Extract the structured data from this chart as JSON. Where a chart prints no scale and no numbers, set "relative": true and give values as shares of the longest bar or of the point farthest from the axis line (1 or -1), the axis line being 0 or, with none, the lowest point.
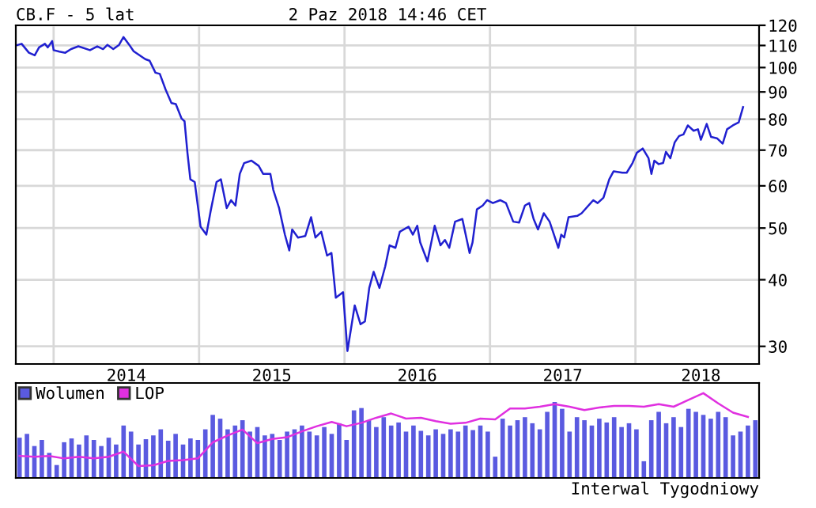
{
  "chart_data": [
    {
      "type": "line",
      "title": "CB.F - 5 lat",
      "subtitle": "2 Paz 2018 14:46 CET",
      "log": "y",
      "grid": true,
      "xlim": [
        2013.74,
        2018.85
      ],
      "xticks": [
        {
          "value": 2014,
          "label": null
        },
        {
          "value": 2014.5,
          "label": "2014"
        },
        {
          "value": 2015,
          "label": null
        },
        {
          "value": 2015.5,
          "label": "2015"
        },
        {
          "value": 2016,
          "label": null
        },
        {
          "value": 2016.5,
          "label": "2016"
        },
        {
          "value": 2017,
          "label": null
        },
        {
          "value": 2017.5,
          "label": "2017"
        },
        {
          "value": 2018,
          "label": null
        },
        {
          "value": 2018.45,
          "label": "2018"
        }
      ],
      "ylim": [
        27.8,
        120
      ],
      "yticks": [
        30,
        40,
        50,
        60,
        70,
        80,
        90,
        100,
        110,
        120
      ],
      "series": [
        {
          "color": "#2020d0",
          "x": [
            2013.74,
            2013.78,
            2013.83,
            2013.87,
            2013.9,
            2013.94,
            2013.96,
            2013.99,
            2014.0,
            2014.04,
            2014.08,
            2014.12,
            2014.17,
            2014.25,
            2014.3,
            2014.34,
            2014.37,
            2014.41,
            2014.45,
            2014.48,
            2014.52,
            2014.55,
            2014.58,
            2014.63,
            2014.66,
            2014.7,
            2014.73,
            2014.77,
            2014.81,
            2014.84,
            2014.88,
            2014.9,
            2014.92,
            2014.94,
            2014.97,
            2015.01,
            2015.05,
            2015.08,
            2015.12,
            2015.15,
            2015.19,
            2015.22,
            2015.25,
            2015.28,
            2015.31,
            2015.36,
            2015.41,
            2015.44,
            2015.49,
            2015.51,
            2015.55,
            2015.59,
            2015.62,
            2015.64,
            2015.68,
            2015.73,
            2015.77,
            2015.8,
            2015.84,
            2015.88,
            2015.91,
            2015.94,
            2015.99,
            2016.02,
            2016.07,
            2016.11,
            2016.14,
            2016.17,
            2016.2,
            2016.24,
            2016.28,
            2016.31,
            2016.35,
            2016.38,
            2016.44,
            2016.47,
            2016.5,
            2016.52,
            2016.57,
            2016.62,
            2016.66,
            2016.69,
            2016.72,
            2016.76,
            2016.81,
            2016.86,
            2016.88,
            2016.91,
            2016.95,
            2016.98,
            2017.02,
            2017.07,
            2017.11,
            2017.16,
            2017.2,
            2017.24,
            2017.27,
            2017.3,
            2017.33,
            2017.37,
            2017.41,
            2017.44,
            2017.47,
            2017.49,
            2017.51,
            2017.54,
            2017.6,
            2017.63,
            2017.71,
            2017.74,
            2017.78,
            2017.82,
            2017.85,
            2017.91,
            2017.94,
            2017.98,
            2018.01,
            2018.05,
            2018.09,
            2018.11,
            2018.13,
            2018.16,
            2018.19,
            2018.21,
            2018.24,
            2018.27,
            2018.3,
            2018.33,
            2018.36,
            2018.4,
            2018.43,
            2018.45,
            2018.49,
            2018.52,
            2018.56,
            2018.6,
            2018.63,
            2018.67,
            2018.71,
            2018.74
          ],
          "values": [
            110,
            110.8,
            106.6,
            105.4,
            109.1,
            110.8,
            109.1,
            112.1,
            107.8,
            107.1,
            106.6,
            108.3,
            109.6,
            107.8,
            109.6,
            108.3,
            110.3,
            108.3,
            110.3,
            114.1,
            110.3,
            107.3,
            105.9,
            103.7,
            103.0,
            97.8,
            97.3,
            90.9,
            85.8,
            85.4,
            80.2,
            79.3,
            69.2,
            61.7,
            61.0,
            50.3,
            48.6,
            53.9,
            61.0,
            61.7,
            54.5,
            56.4,
            55.1,
            63.2,
            66.2,
            66.9,
            65.4,
            63.2,
            63.2,
            59.0,
            54.5,
            48.6,
            45.4,
            49.7,
            48.0,
            48.3,
            52.4,
            48.0,
            49.2,
            44.4,
            44.9,
            37.0,
            37.9,
            29.4,
            35.8,
            33.0,
            33.4,
            38.6,
            41.4,
            38.6,
            42.4,
            46.4,
            45.9,
            49.2,
            50.3,
            48.6,
            50.5,
            47.0,
            43.3,
            50.5,
            46.4,
            47.5,
            45.9,
            51.4,
            52.0,
            44.9,
            47.0,
            54.2,
            55.1,
            56.4,
            55.7,
            56.4,
            55.7,
            51.4,
            51.2,
            55.1,
            55.7,
            52.0,
            49.7,
            53.3,
            51.4,
            48.6,
            45.9,
            48.6,
            48.0,
            52.4,
            52.7,
            53.3,
            56.4,
            55.7,
            57.0,
            61.7,
            63.9,
            63.5,
            63.5,
            66.2,
            69.2,
            70.5,
            67.6,
            63.2,
            66.9,
            65.9,
            66.2,
            69.5,
            67.6,
            72.4,
            74.4,
            74.9,
            77.9,
            76.1,
            76.6,
            73.2,
            78.4,
            74.1,
            73.7,
            72.0,
            76.6,
            77.9,
            78.9,
            84.3
          ]
        }
      ]
    },
    {
      "type": "bar",
      "relative": true,
      "legend": "top left",
      "annotations": [
        "Interwal Tygodniowy"
      ],
      "categories": [
        null,
        null,
        null,
        null,
        null,
        null,
        null,
        null,
        null,
        null,
        null,
        null,
        null,
        null,
        null,
        null,
        null,
        null,
        null,
        null,
        null,
        null,
        null,
        null,
        null,
        null,
        null,
        null,
        null,
        null,
        null,
        null,
        null,
        null,
        null,
        null,
        null,
        null,
        null,
        null,
        null,
        null,
        null,
        null,
        null,
        null,
        null,
        null,
        null,
        null,
        null,
        null,
        null,
        null,
        null,
        null,
        null,
        null,
        null,
        null,
        null,
        null,
        null,
        null,
        null,
        null,
        null,
        null,
        null,
        null,
        null,
        null,
        null,
        null,
        null,
        null,
        null,
        null,
        null,
        null,
        null,
        null,
        null,
        null,
        null,
        null,
        null,
        null,
        null,
        null,
        null,
        null,
        null,
        null,
        null,
        null,
        null,
        null,
        null,
        null
      ],
      "series": [
        {
          "name": "Wolumen",
          "color": "#5a5ae0",
          "values": [
            0.53,
            0.58,
            0.42,
            0.5,
            0.33,
            0.17,
            0.47,
            0.52,
            0.44,
            0.56,
            0.5,
            0.42,
            0.53,
            0.44,
            0.69,
            0.61,
            0.44,
            0.51,
            0.56,
            0.64,
            0.49,
            0.58,
            0.44,
            0.52,
            0.5,
            0.64,
            0.83,
            0.78,
            0.64,
            0.69,
            0.76,
            0.61,
            0.67,
            0.56,
            0.58,
            0.5,
            0.61,
            0.64,
            0.69,
            0.61,
            0.56,
            0.67,
            0.58,
            0.72,
            0.5,
            0.89,
            0.92,
            0.76,
            0.67,
            0.8,
            0.69,
            0.73,
            0.61,
            0.69,
            0.62,
            0.56,
            0.64,
            0.58,
            0.64,
            0.61,
            0.69,
            0.63,
            0.69,
            0.61,
            0.28,
            0.78,
            0.69,
            0.76,
            0.8,
            0.72,
            0.64,
            0.87,
            1.0,
            0.91,
            0.61,
            0.8,
            0.76,
            0.69,
            0.78,
            0.73,
            0.8,
            0.67,
            0.72,
            0.64,
            0.22,
            0.76,
            0.87,
            0.72,
            0.8,
            0.67,
            0.91,
            0.87,
            0.83,
            0.78,
            0.87,
            0.8,
            0.56,
            0.61,
            0.69,
            0.76
          ]
        }
      ]
    },
    {
      "type": "line",
      "relative": true,
      "legend": "top left",
      "categories": [
        null,
        null,
        null,
        null,
        null,
        null,
        null,
        null,
        null,
        null,
        null,
        null,
        null,
        null,
        null,
        null,
        null,
        null,
        null,
        null,
        null,
        null,
        null,
        null,
        null,
        null,
        null,
        null,
        null,
        null,
        null,
        null,
        null,
        null,
        null,
        null,
        null,
        null,
        null,
        null,
        null,
        null,
        null,
        null,
        null,
        null,
        null,
        null,
        null,
        null
      ],
      "series": [
        {
          "name": "LOP",
          "color": "#e030e0",
          "values": [
            0.26,
            0.25,
            0.26,
            0.23,
            0.25,
            0.23,
            0.25,
            0.31,
            0.14,
            0.15,
            0.2,
            0.21,
            0.23,
            0.42,
            0.5,
            0.57,
            0.41,
            0.46,
            0.48,
            0.55,
            0.61,
            0.66,
            0.61,
            0.65,
            0.71,
            0.76,
            0.7,
            0.71,
            0.67,
            0.64,
            0.65,
            0.7,
            0.69,
            0.82,
            0.82,
            0.84,
            0.87,
            0.84,
            0.8,
            0.83,
            0.85,
            0.85,
            0.84,
            0.87,
            0.84,
            0.92,
            1.0,
            0.88,
            0.77,
            0.72
          ]
        }
      ]
    }
  ]
}
